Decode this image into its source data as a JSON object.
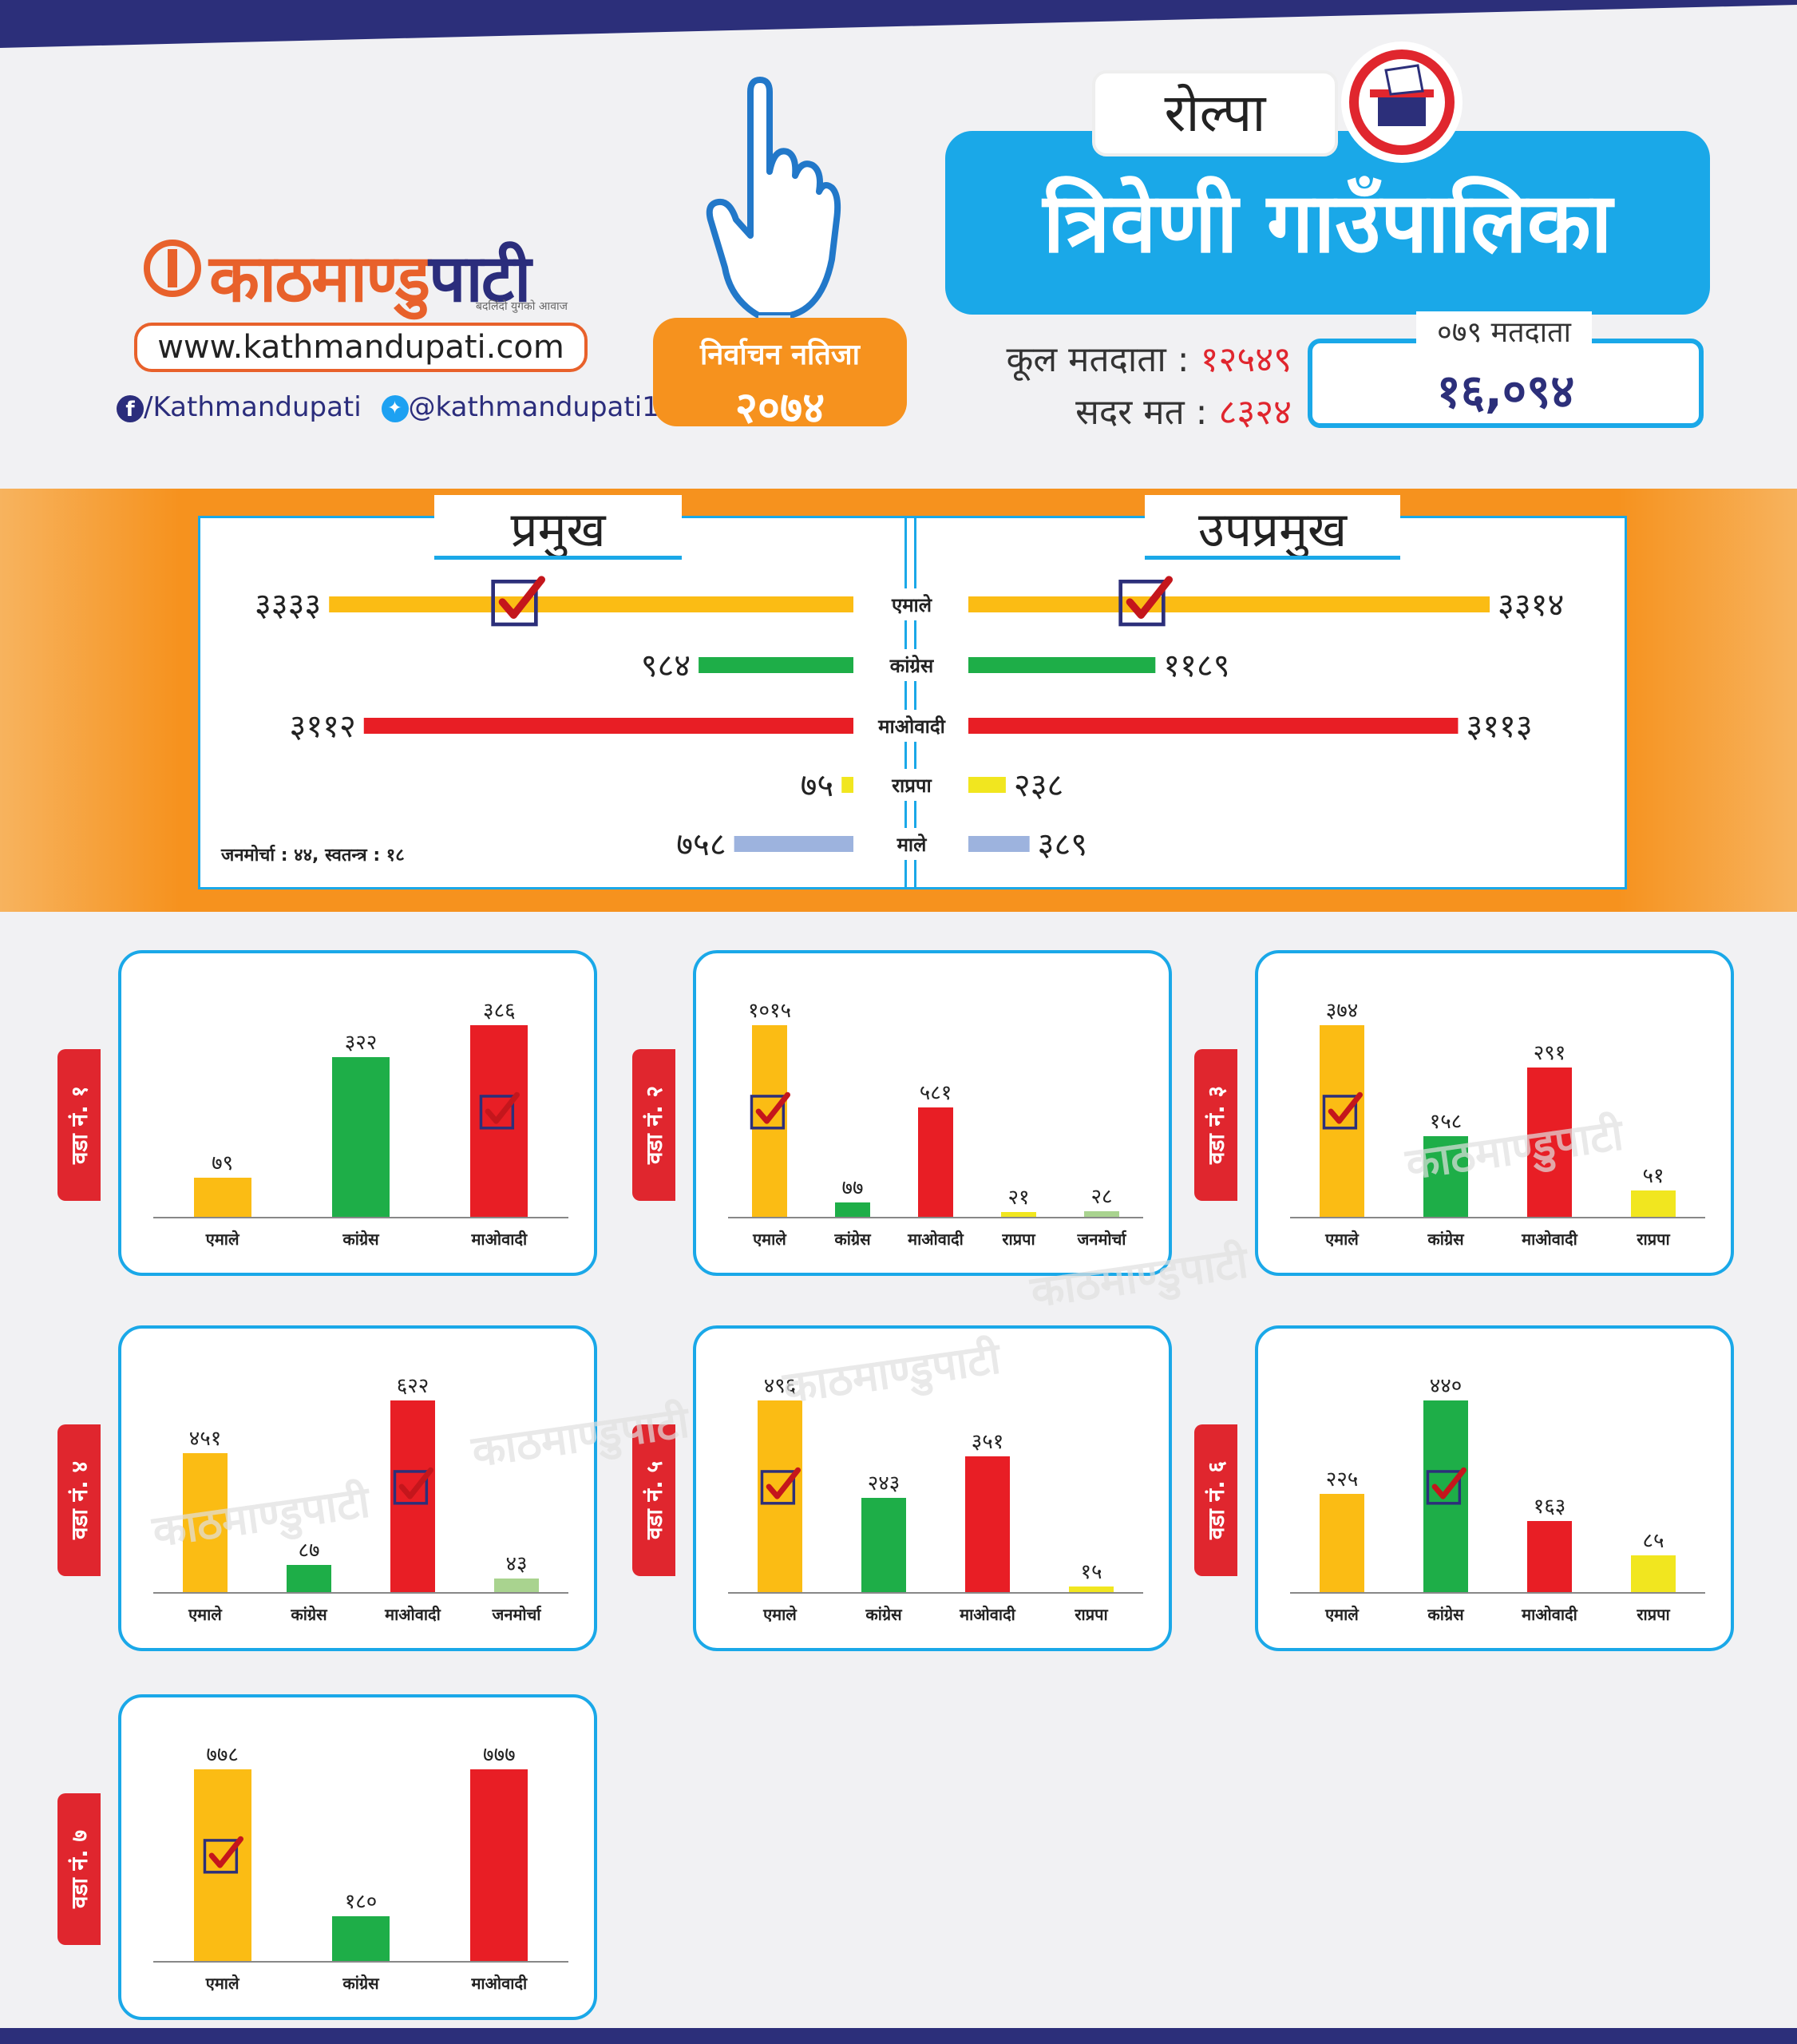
{
  "header": {
    "logo_text": "काठमाण्डु",
    "logo_text_b": "पाटी",
    "logo_tagline": "बदलिंदो युगको आवाज",
    "url": "www.kathmandupati.com",
    "facebook": "/Kathmandupati",
    "twitter": "@kathmandupati1",
    "result_label": "निर्वाचन नतिजा",
    "result_year": "२०७४",
    "district": "रोल्पा",
    "municipality": "त्रिवेणी  गाउँपालिका",
    "total_voters_label": "कूल मतदाता :",
    "total_voters": "१२५४९",
    "valid_votes_label": "सदर मत :",
    "valid_votes": "८३२४",
    "voters_079_label": "०७९ मतदाता",
    "voters_079": "१६,०९४"
  },
  "colors": {
    "yellow": "#fbbc14",
    "green": "#1eae48",
    "red": "#e81e25",
    "rpp": "#f1e61f",
    "male": "#9db3de",
    "janmorcha": "#a9d38f",
    "blue": "#1aa8e8",
    "orange": "#f6921e"
  },
  "summary": {
    "pramukh_title": "प्रमुख",
    "upapramukh_title": "उपप्रमुख",
    "note": "जनमोर्चा : ४४, स्वतन्त्र : १८",
    "parties": [
      {
        "name": "एमाले",
        "color": "#fbbc14",
        "pramukh": 3333,
        "pramukh_label": "३३३३",
        "upa": 3314,
        "upa_label": "३३१४",
        "winner": true
      },
      {
        "name": "कांग्रेस",
        "color": "#1eae48",
        "pramukh": 984,
        "pramukh_label": "९८४",
        "upa": 1189,
        "upa_label": "११८९",
        "winner": false
      },
      {
        "name": "माओवादी",
        "color": "#e81e25",
        "pramukh": 3112,
        "pramukh_label": "३११२",
        "upa": 3113,
        "upa_label": "३११३",
        "winner": false
      },
      {
        "name": "राप्रपा",
        "color": "#f1e61f",
        "pramukh": 75,
        "pramukh_label": "७५",
        "upa": 238,
        "upa_label": "२३८",
        "winner": false
      },
      {
        "name": "माले",
        "color": "#9db3de",
        "pramukh": 758,
        "pramukh_label": "७५८",
        "upa": 389,
        "upa_label": "३८९",
        "winner": false
      }
    ]
  },
  "chart_data": [
    {
      "type": "bar",
      "title": "वडा नं. १",
      "categories": [
        "एमाले",
        "कांग्रेस",
        "माओवादी"
      ],
      "values": [
        79,
        322,
        386
      ],
      "value_labels": [
        "७९",
        "३२२",
        "३८६"
      ],
      "colors": [
        "#fbbc14",
        "#1eae48",
        "#e81e25"
      ],
      "winner": 2
    },
    {
      "type": "bar",
      "title": "वडा नं. २",
      "categories": [
        "एमाले",
        "कांग्रेस",
        "माओवादी",
        "राप्रपा",
        "जनमोर्चा"
      ],
      "values": [
        1015,
        77,
        581,
        21,
        28
      ],
      "value_labels": [
        "१०१५",
        "७७",
        "५८१",
        "२१",
        "२८"
      ],
      "colors": [
        "#fbbc14",
        "#1eae48",
        "#e81e25",
        "#f1e61f",
        "#a9d38f"
      ],
      "winner": 0
    },
    {
      "type": "bar",
      "title": "वडा नं. ३",
      "categories": [
        "एमाले",
        "कांग्रेस",
        "माओवादी",
        "राप्रपा"
      ],
      "values": [
        374,
        158,
        291,
        51
      ],
      "value_labels": [
        "३७४",
        "१५८",
        "२९१",
        "५१"
      ],
      "colors": [
        "#fbbc14",
        "#1eae48",
        "#e81e25",
        "#f1e61f"
      ],
      "winner": 0
    },
    {
      "type": "bar",
      "title": "वडा नं. ४",
      "categories": [
        "एमाले",
        "कांग्रेस",
        "माओवादी",
        "जनमोर्चा"
      ],
      "values": [
        451,
        87,
        622,
        43
      ],
      "value_labels": [
        "४५१",
        "८७",
        "६२२",
        "४३"
      ],
      "colors": [
        "#fbbc14",
        "#1eae48",
        "#e81e25",
        "#a9d38f"
      ],
      "winner": 2
    },
    {
      "type": "bar",
      "title": "वडा नं. ५",
      "categories": [
        "एमाले",
        "कांग्रेस",
        "माओवादी",
        "राप्रपा"
      ],
      "values": [
        496,
        243,
        351,
        15
      ],
      "value_labels": [
        "४९६",
        "२४३",
        "३५१",
        "१५"
      ],
      "colors": [
        "#fbbc14",
        "#1eae48",
        "#e81e25",
        "#f1e61f"
      ],
      "winner": 0
    },
    {
      "type": "bar",
      "title": "वडा नं. ६",
      "categories": [
        "एमाले",
        "कांग्रेस",
        "माओवादी",
        "राप्रपा"
      ],
      "values": [
        225,
        440,
        163,
        85
      ],
      "value_labels": [
        "२२५",
        "४४०",
        "१६३",
        "८५"
      ],
      "colors": [
        "#fbbc14",
        "#1eae48",
        "#e81e25",
        "#f1e61f"
      ],
      "winner": 1
    },
    {
      "type": "bar",
      "title": "वडा नं. ७",
      "categories": [
        "एमाले",
        "कांग्रेस",
        "माओवादी"
      ],
      "values": [
        778,
        180,
        777
      ],
      "value_labels": [
        "७७८",
        "१८०",
        "७७७"
      ],
      "colors": [
        "#fbbc14",
        "#1eae48",
        "#e81e25"
      ],
      "winner": 0
    }
  ]
}
